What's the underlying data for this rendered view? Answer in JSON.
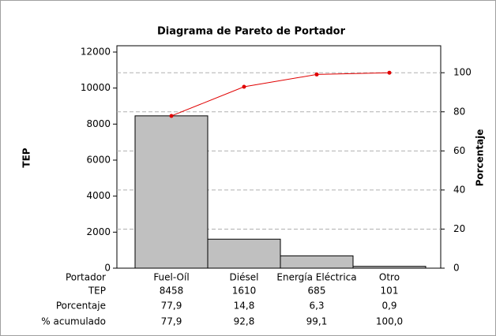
{
  "chart_data": {
    "type": "pareto",
    "title": "Diagrama de Pareto de Portador",
    "y_label": "TEP",
    "y2_label": "Porcentaje",
    "category_label": "Portador",
    "categories": [
      "Fuel-Oíl",
      "Diésel",
      "Energía Eléctrica",
      "Otro"
    ],
    "series": [
      {
        "name": "TEP",
        "color": "#c0c0c0",
        "values": [
          8458,
          1610,
          685,
          101
        ]
      },
      {
        "name": "% acumulado",
        "color": "#e00000",
        "axis": "y2",
        "values": [
          77.9,
          92.8,
          99.1,
          100.0
        ],
        "value_labels": [
          "77,9",
          "92,8",
          "99,1",
          "100,0"
        ]
      }
    ],
    "percent": {
      "name": "Porcentaje",
      "values": [
        77.9,
        14.8,
        6.3,
        0.9
      ],
      "value_labels": [
        "77,9",
        "14,8",
        "6,3",
        "0,9"
      ]
    },
    "ylim": [
      0,
      12350
    ],
    "yticks": [
      0,
      2000,
      4000,
      6000,
      8000,
      10000,
      12000
    ],
    "y2lim": [
      0,
      113.8
    ],
    "y2ticks": [
      0,
      20,
      40,
      60,
      80,
      100
    ],
    "grid": true
  }
}
